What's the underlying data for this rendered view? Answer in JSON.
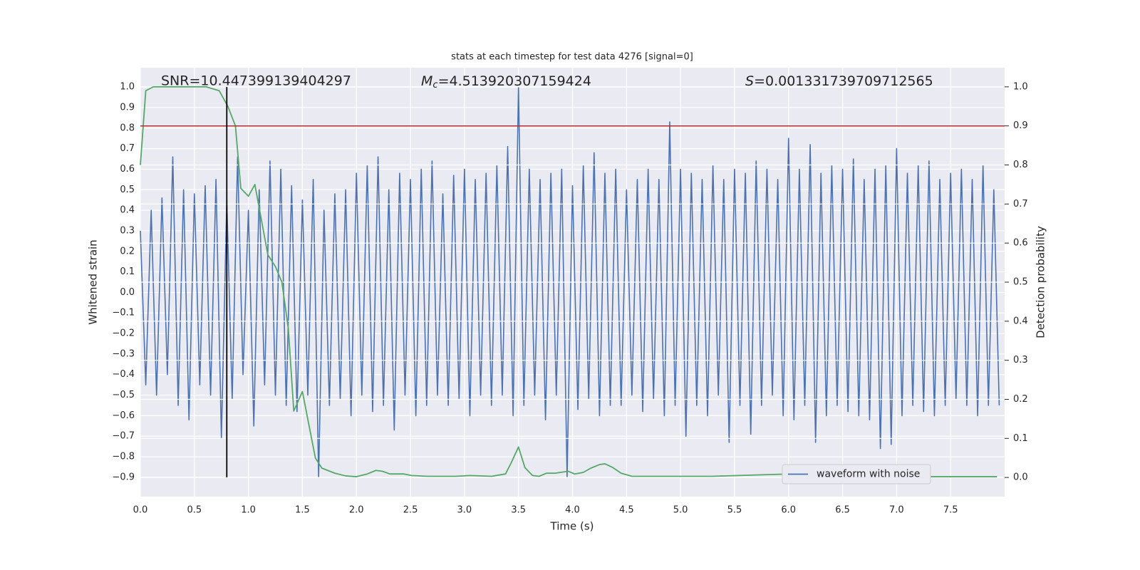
{
  "chart_data": {
    "type": "line",
    "title": "stats at each timestep for test data 4276 [signal=0]",
    "annotations": {
      "snr": "SNR=10.447399139404297",
      "mc": {
        "symbol": "M",
        "subscript": "c",
        "text": "=4.513920307159424"
      },
      "s": {
        "symbol": "S",
        "text": "=0.001331739709712565"
      }
    },
    "xlabel": "Time (s)",
    "ylabel": "Whitened strain",
    "y2label": "Detection probability",
    "xlim": [
      0,
      8.0
    ],
    "ylim": [
      -0.994,
      1.094
    ],
    "y2lim": [
      -0.049,
      1.049
    ],
    "xticks": [
      {
        "value": 0,
        "label": "0.0"
      },
      0.5,
      {
        "value": 1,
        "label": "1.0"
      },
      1.5,
      {
        "value": 2,
        "label": "2.0"
      },
      2.5,
      {
        "value": 3,
        "label": "3.0"
      },
      3.5,
      {
        "value": 4,
        "label": "4.0"
      },
      4.5,
      {
        "value": 5,
        "label": "5.0"
      },
      5.5,
      {
        "value": 6,
        "label": "6.0"
      },
      6.5,
      {
        "value": 7,
        "label": "7.0"
      },
      7.5
    ],
    "yticks": [
      {
        "value": -0.9,
        "label": "−0.9"
      },
      {
        "value": -0.8,
        "label": "−0.8"
      },
      {
        "value": -0.7,
        "label": "−0.7"
      },
      {
        "value": -0.6,
        "label": "−0.6"
      },
      {
        "value": -0.5,
        "label": "−0.5"
      },
      {
        "value": -0.4,
        "label": "−0.4"
      },
      {
        "value": -0.3,
        "label": "−0.3"
      },
      {
        "value": -0.2,
        "label": "−0.2"
      },
      {
        "value": -0.1,
        "label": "−0.1"
      },
      {
        "value": 0,
        "label": "0.0"
      },
      0.1,
      0.2,
      0.3,
      0.4,
      0.5,
      0.6,
      0.7,
      0.8,
      0.9,
      {
        "value": 1,
        "label": "1.0"
      }
    ],
    "y2ticks": [
      {
        "value": 0,
        "label": "0.0"
      },
      0.1,
      0.2,
      0.3,
      0.4,
      0.5,
      0.6,
      0.7,
      0.8,
      0.9,
      {
        "value": 1,
        "label": "1.0"
      }
    ],
    "grid": true,
    "legend_loc": "lower right",
    "threshold": {
      "value": 0.9,
      "axis": "y2",
      "color": "#b8312f"
    },
    "vline": {
      "x": 0.8,
      "ymin": -0.9,
      "ymax": 1.0,
      "color": "#000000"
    },
    "series": [
      {
        "name": "waveform with noise",
        "color": "#4c72b0",
        "x": [
          0,
          0.05,
          0.1,
          0.15,
          0.2,
          0.25,
          0.3,
          0.35,
          0.4,
          0.45,
          0.5,
          0.55,
          0.6,
          0.65,
          0.7,
          0.75,
          0.8,
          0.85,
          0.9,
          0.95,
          1,
          1.05,
          1.1,
          1.15,
          1.2,
          1.25,
          1.3,
          1.35,
          1.4,
          1.45,
          1.5,
          1.55,
          1.6,
          1.65,
          1.7,
          1.75,
          1.8,
          1.85,
          1.9,
          1.95,
          2,
          2.05,
          2.1,
          2.15,
          2.2,
          2.25,
          2.3,
          2.35,
          2.4,
          2.45,
          2.5,
          2.55,
          2.6,
          2.65,
          2.7,
          2.75,
          2.8,
          2.85,
          2.9,
          2.95,
          3,
          3.05,
          3.1,
          3.15,
          3.2,
          3.25,
          3.3,
          3.35,
          3.4,
          3.45,
          3.5,
          3.55,
          3.6,
          3.65,
          3.7,
          3.75,
          3.8,
          3.85,
          3.9,
          3.95,
          4,
          4.05,
          4.1,
          4.15,
          4.2,
          4.25,
          4.3,
          4.35,
          4.4,
          4.45,
          4.5,
          4.55,
          4.6,
          4.65,
          4.7,
          4.75,
          4.8,
          4.85,
          4.9,
          4.95,
          5,
          5.05,
          5.1,
          5.15,
          5.2,
          5.25,
          5.3,
          5.35,
          5.4,
          5.45,
          5.5,
          5.55,
          5.6,
          5.65,
          5.7,
          5.75,
          5.8,
          5.85,
          5.9,
          5.95,
          6,
          6.05,
          6.1,
          6.15,
          6.2,
          6.25,
          6.3,
          6.35,
          6.4,
          6.45,
          6.5,
          6.55,
          6.6,
          6.65,
          6.7,
          6.75,
          6.8,
          6.85,
          6.9,
          6.95,
          7,
          7.05,
          7.1,
          7.15,
          7.2,
          7.25,
          7.3,
          7.35,
          7.4,
          7.45,
          7.5,
          7.55,
          7.6,
          7.65,
          7.7,
          7.75,
          7.8,
          7.85,
          7.9,
          7.95
        ],
        "values": [
          0.3,
          -0.45,
          0.4,
          -0.5,
          0.46,
          -0.4,
          0.66,
          -0.55,
          0.5,
          -0.62,
          0.48,
          -0.45,
          0.52,
          -0.5,
          0.55,
          -0.71,
          0.45,
          -0.52,
          0.66,
          -0.4,
          0.4,
          -0.65,
          0.5,
          -0.45,
          0.64,
          -0.5,
          0.6,
          -0.55,
          0.52,
          -0.58,
          0.45,
          -0.5,
          0.55,
          -0.9,
          0.4,
          -0.55,
          0.48,
          -0.52,
          0.5,
          -0.6,
          0.58,
          -0.5,
          0.62,
          -0.58,
          0.66,
          -0.55,
          0.5,
          -0.67,
          0.58,
          -0.5,
          0.55,
          -0.6,
          0.6,
          -0.55,
          0.64,
          -0.5,
          0.48,
          -0.55,
          0.57,
          -0.52,
          0.6,
          -0.6,
          0.55,
          -0.5,
          0.58,
          -0.55,
          0.62,
          -0.5,
          0.71,
          -0.6,
          1.0,
          -0.55,
          0.6,
          -0.5,
          0.55,
          -0.62,
          0.58,
          -0.5,
          0.6,
          -0.9,
          0.52,
          -0.57,
          0.62,
          -0.52,
          0.68,
          -0.6,
          0.58,
          -0.55,
          0.6,
          -0.55,
          0.5,
          -0.5,
          0.55,
          -0.58,
          0.6,
          -0.52,
          0.55,
          -0.6,
          0.83,
          -0.55,
          0.6,
          -0.7,
          0.58,
          -0.55,
          0.55,
          -0.6,
          0.62,
          -0.5,
          0.55,
          -0.73,
          0.6,
          -0.55,
          0.58,
          -0.69,
          0.64,
          -0.55,
          0.6,
          -0.5,
          0.55,
          -0.6,
          0.75,
          -0.62,
          0.6,
          -0.55,
          0.72,
          -0.73,
          0.58,
          -0.6,
          0.62,
          -0.55,
          0.6,
          -0.58,
          0.65,
          -0.6,
          0.55,
          -0.62,
          0.6,
          -0.76,
          0.62,
          -0.74,
          0.7,
          -0.6,
          0.58,
          -0.55,
          0.62,
          -0.58,
          0.64,
          -0.6,
          0.55,
          -0.55,
          0.58,
          -0.52,
          0.6,
          -0.55,
          0.55,
          -0.6,
          0.62,
          -0.55,
          0.5,
          -0.55
        ]
      },
      {
        "color": "#55a868",
        "axis": "y2",
        "x": [
          0,
          0.05,
          0.12,
          0.61,
          0.73,
          0.81,
          0.88,
          0.93,
          1.0,
          1.06,
          1.11,
          1.18,
          1.25,
          1.31,
          1.37,
          1.42,
          1.5,
          1.62,
          1.68,
          1.8,
          1.9,
          2.0,
          2.1,
          2.18,
          2.24,
          2.31,
          2.44,
          2.51,
          2.66,
          2.92,
          3.05,
          3.25,
          3.38,
          3.43,
          3.5,
          3.56,
          3.63,
          3.69,
          3.76,
          3.84,
          3.96,
          4.02,
          4.1,
          4.17,
          4.25,
          4.3,
          4.37,
          4.45,
          4.55,
          5.29,
          6.49,
          6.56,
          6.61,
          7.93
        ],
        "values": [
          0.8,
          0.99,
          1.0,
          1.0,
          0.99,
          0.95,
          0.9,
          0.74,
          0.72,
          0.75,
          0.675,
          0.57,
          0.54,
          0.5,
          0.38,
          0.17,
          0.22,
          0.05,
          0.024,
          0.011,
          0.004,
          0.002,
          0.009,
          0.018,
          0.016,
          0.009,
          0.009,
          0.005,
          0.003,
          0.003,
          0.005,
          0.003,
          0.009,
          0.036,
          0.078,
          0.025,
          0.005,
          0.003,
          0.011,
          0.011,
          0.016,
          0.009,
          0.013,
          0.024,
          0.033,
          0.035,
          0.026,
          0.011,
          0.003,
          0.003,
          0.013,
          0.009,
          0.002,
          0.002
        ]
      }
    ]
  }
}
